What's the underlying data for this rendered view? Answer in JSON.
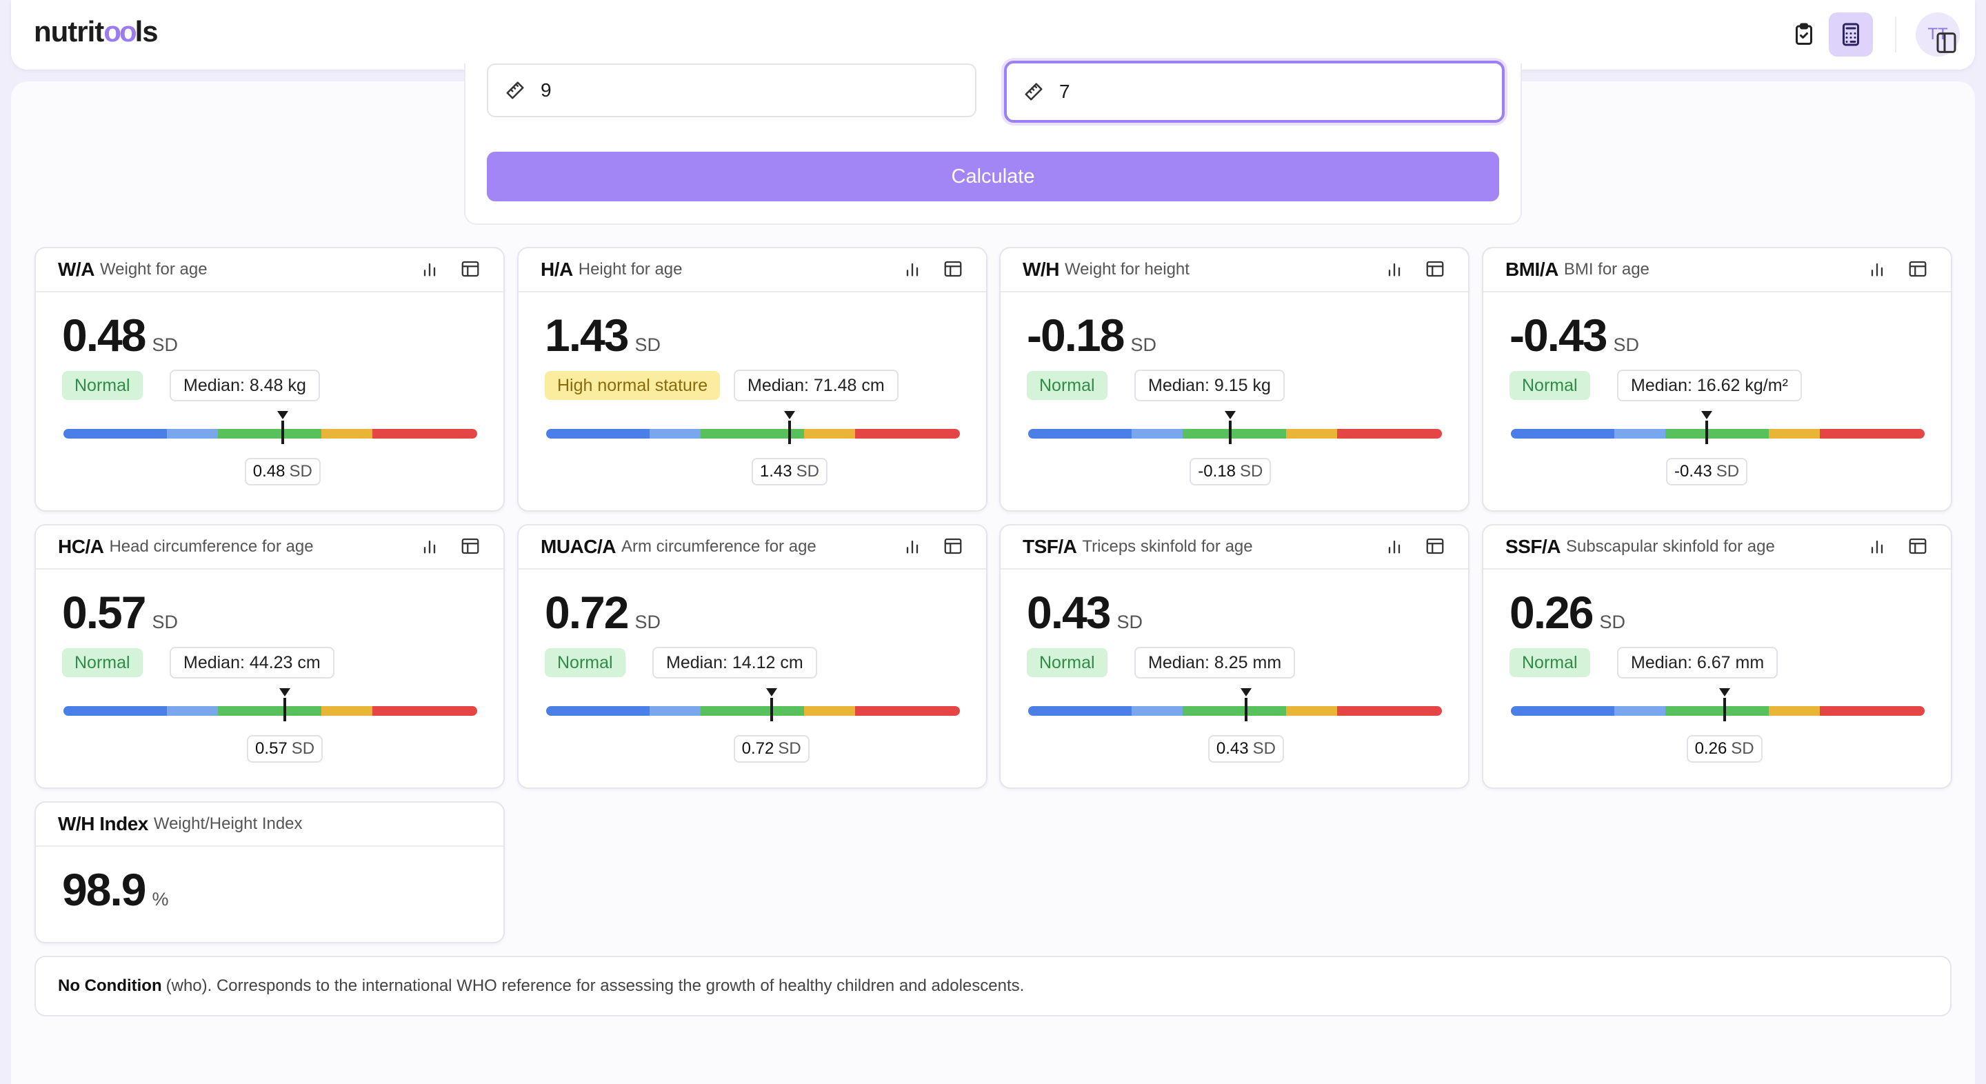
{
  "app": {
    "logo_pre": "nutrit",
    "logo_oo": "oo",
    "logo_post": "ls",
    "header_icons": [
      "clipboard-check-icon",
      "calculator-icon"
    ],
    "avatar_initials": "TT"
  },
  "form": {
    "input_left_value": "9",
    "input_right_value": "7",
    "calculate_label": "Calculate"
  },
  "cards": [
    {
      "code": "W/A",
      "name": "Weight for age",
      "value": "0.48",
      "unit": "SD",
      "status": "Normal",
      "status_kind": "normal",
      "median": "Median: 8.48 kg",
      "sd_value": 0.48,
      "sd_text": "0.48",
      "sd_unit": "SD"
    },
    {
      "code": "H/A",
      "name": "Height for age",
      "value": "1.43",
      "unit": "SD",
      "status": "High normal stature",
      "status_kind": "high",
      "median": "Median: 71.48 cm",
      "sd_value": 1.43,
      "sd_text": "1.43",
      "sd_unit": "SD"
    },
    {
      "code": "W/H",
      "name": "Weight for height",
      "value": "-0.18",
      "unit": "SD",
      "status": "Normal",
      "status_kind": "normal",
      "median": "Median: 9.15 kg",
      "sd_value": -0.18,
      "sd_text": "-0.18",
      "sd_unit": "SD"
    },
    {
      "code": "BMI/A",
      "name": "BMI for age",
      "value": "-0.43",
      "unit": "SD",
      "status": "Normal",
      "status_kind": "normal",
      "median": "Median: 16.62 kg/m²",
      "sd_value": -0.43,
      "sd_text": "-0.43",
      "sd_unit": "SD"
    },
    {
      "code": "HC/A",
      "name": "Head circumference for age",
      "value": "0.57",
      "unit": "SD",
      "status": "Normal",
      "status_kind": "normal",
      "median": "Median: 44.23 cm",
      "sd_value": 0.57,
      "sd_text": "0.57",
      "sd_unit": "SD"
    },
    {
      "code": "MUAC/A",
      "name": "Arm circumference for age",
      "value": "0.72",
      "unit": "SD",
      "status": "Normal",
      "status_kind": "normal",
      "median": "Median: 14.12 cm",
      "sd_value": 0.72,
      "sd_text": "0.72",
      "sd_unit": "SD"
    },
    {
      "code": "TSF/A",
      "name": "Triceps skinfold for age",
      "value": "0.43",
      "unit": "SD",
      "status": "Normal",
      "status_kind": "normal",
      "median": "Median: 8.25 mm",
      "sd_value": 0.43,
      "sd_text": "0.43",
      "sd_unit": "SD"
    },
    {
      "code": "SSF/A",
      "name": "Subscapular skinfold for age",
      "value": "0.26",
      "unit": "SD",
      "status": "Normal",
      "status_kind": "normal",
      "median": "Median: 6.67 mm",
      "sd_value": 0.26,
      "sd_text": "0.26",
      "sd_unit": "SD"
    }
  ],
  "index_card": {
    "code": "W/H Index",
    "name": "Weight/Height Index",
    "value": "98.9",
    "unit": "%"
  },
  "scale_colors": [
    "#4b7fe8",
    "#7aa6ee",
    "#58c05d",
    "#e9b536",
    "#e54545"
  ],
  "reference": {
    "title": "No Condition",
    "text": "(who). Corresponds to the international WHO reference for assessing the growth of healthy children and adolescents."
  }
}
